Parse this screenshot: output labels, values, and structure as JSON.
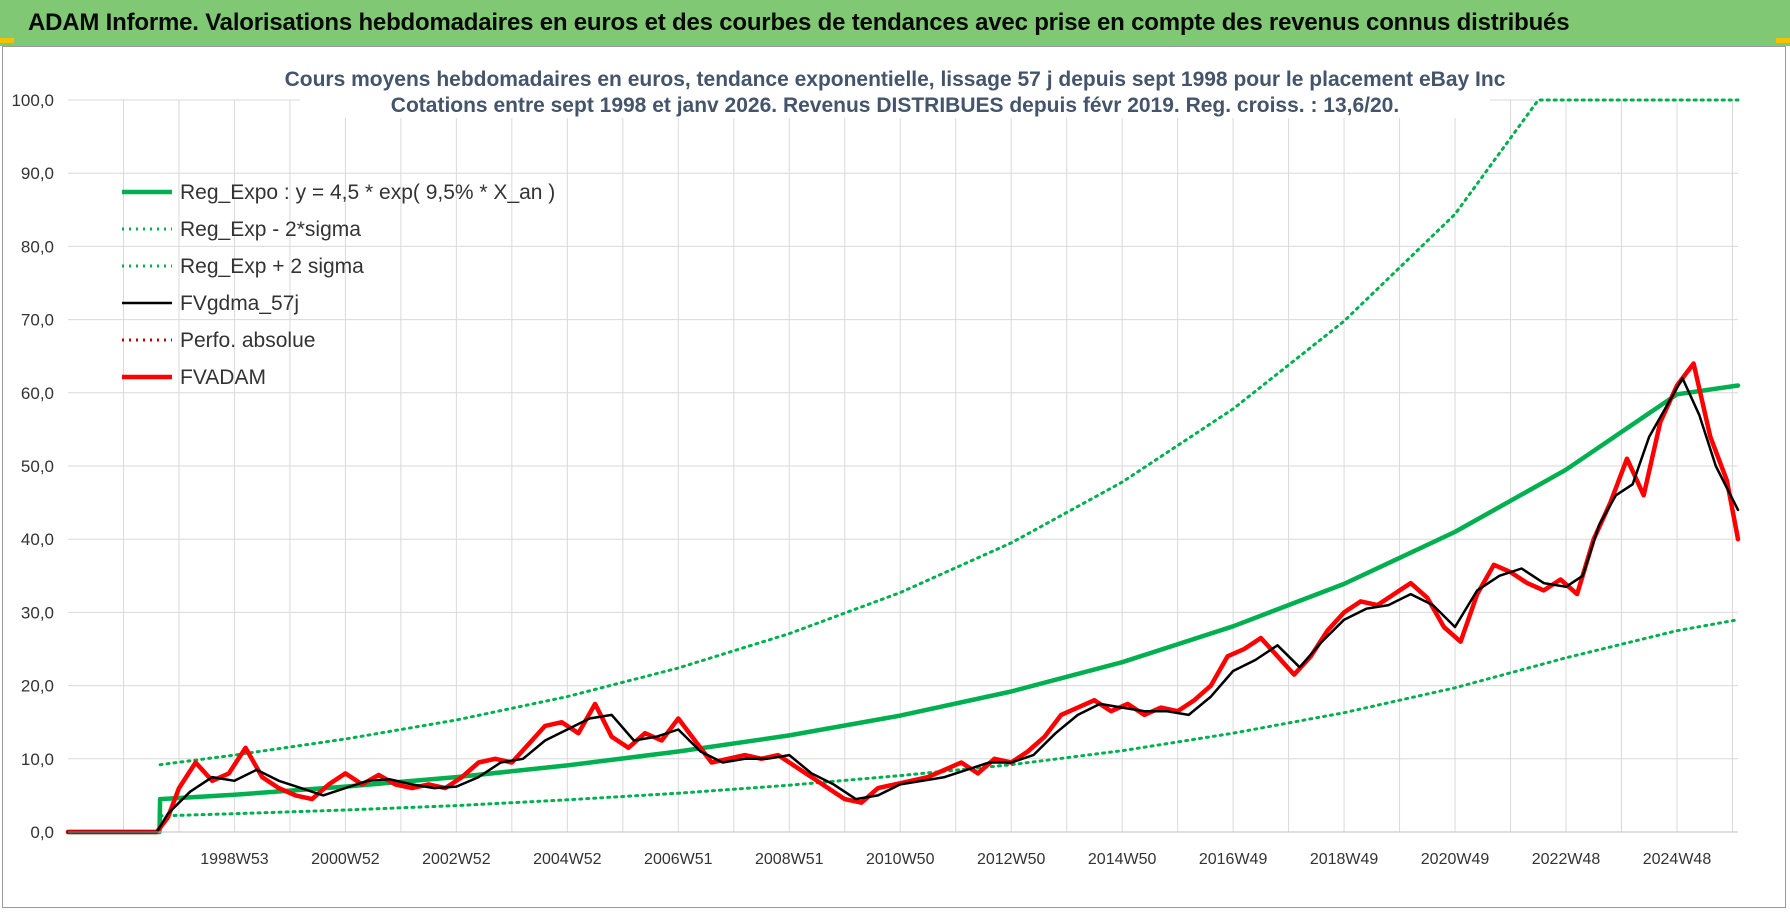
{
  "banner": {
    "title": "ADAM Informe. Valorisations hebdomadaires en euros et des courbes de tendances avec prise en compte des revenus connus distribués"
  },
  "colors": {
    "banner_bg": "#80c873",
    "reg_expo": "#00b050",
    "fvgdma": "#000000",
    "fvadam": "#ff0000",
    "perfo": "#c00000",
    "grid": "#d9d9d9"
  },
  "chart_data": {
    "type": "line",
    "title_lines": [
      "Cours moyens hebdomadaires en euros, tendance exponentielle, lissage 57 j depuis sept 1998 pour le placement eBay Inc",
      "Cotations entre sept 1998 et janv 2026. Revenus DISTRIBUES depuis févr 2019. Reg. croiss. : 13,6/20."
    ],
    "ylim": [
      0,
      100
    ],
    "y_ticks": [
      "0,0",
      "10,0",
      "20,0",
      "30,0",
      "40,0",
      "50,0",
      "60,0",
      "70,0",
      "80,0",
      "90,0",
      "100,0"
    ],
    "x_range": [
      1996.0,
      2026.1
    ],
    "x_tick_labels": [
      {
        "x": 1999.0,
        "label": "1998W53"
      },
      {
        "x": 2001.0,
        "label": "2000W52"
      },
      {
        "x": 2003.0,
        "label": "2002W52"
      },
      {
        "x": 2005.0,
        "label": "2004W52"
      },
      {
        "x": 2007.0,
        "label": "2006W51"
      },
      {
        "x": 2009.0,
        "label": "2008W51"
      },
      {
        "x": 2011.0,
        "label": "2010W50"
      },
      {
        "x": 2013.0,
        "label": "2012W50"
      },
      {
        "x": 2015.0,
        "label": "2014W50"
      },
      {
        "x": 2017.0,
        "label": "2016W49"
      },
      {
        "x": 2019.0,
        "label": "2018W49"
      },
      {
        "x": 2021.0,
        "label": "2020W49"
      },
      {
        "x": 2023.0,
        "label": "2022W48"
      },
      {
        "x": 2025.0,
        "label": "2024W48"
      }
    ],
    "grid": true,
    "legend_position": "top-left",
    "series": [
      {
        "name": "Reg_Expo : y = 4,5 * exp( 9,5% *  X_an )",
        "style": "solid-thick",
        "color": "#00b050",
        "points": [
          [
            1996.0,
            0
          ],
          [
            1997.65,
            0
          ],
          [
            1997.66,
            4.5
          ],
          [
            1999,
            5.1
          ],
          [
            2001,
            6.2
          ],
          [
            2003,
            7.5
          ],
          [
            2005,
            9.1
          ],
          [
            2007,
            11.0
          ],
          [
            2009,
            13.2
          ],
          [
            2011,
            15.9
          ],
          [
            2013,
            19.2
          ],
          [
            2015,
            23.2
          ],
          [
            2017,
            28.1
          ],
          [
            2019,
            33.9
          ],
          [
            2021,
            41.0
          ],
          [
            2023,
            49.5
          ],
          [
            2025,
            59.8
          ],
          [
            2026.1,
            61
          ]
        ]
      },
      {
        "name": "Reg_Exp - 2*sigma",
        "style": "dotted",
        "color": "#00b050",
        "points": [
          [
            1997.66,
            2.2
          ],
          [
            1999,
            2.5
          ],
          [
            2001,
            3.0
          ],
          [
            2003,
            3.6
          ],
          [
            2005,
            4.4
          ],
          [
            2007,
            5.3
          ],
          [
            2009,
            6.4
          ],
          [
            2011,
            7.7
          ],
          [
            2013,
            9.2
          ],
          [
            2015,
            11.1
          ],
          [
            2017,
            13.5
          ],
          [
            2019,
            16.3
          ],
          [
            2021,
            19.7
          ],
          [
            2023,
            23.8
          ],
          [
            2025,
            27.5
          ],
          [
            2026.1,
            29.0
          ]
        ]
      },
      {
        "name": "Reg_Exp + 2 sigma",
        "style": "dotted",
        "color": "#00b050",
        "points": [
          [
            1997.66,
            9.2
          ],
          [
            1999,
            10.5
          ],
          [
            2001,
            12.7
          ],
          [
            2003,
            15.3
          ],
          [
            2005,
            18.5
          ],
          [
            2007,
            22.4
          ],
          [
            2009,
            27.1
          ],
          [
            2011,
            32.7
          ],
          [
            2013,
            39.5
          ],
          [
            2015,
            47.8
          ],
          [
            2017,
            57.8
          ],
          [
            2019,
            69.8
          ],
          [
            2021,
            84.4
          ],
          [
            2022.5,
            100
          ],
          [
            2026.1,
            100
          ]
        ]
      },
      {
        "name": "FVgdma_57j",
        "style": "solid",
        "color": "#000000",
        "points": [
          [
            1996.0,
            0
          ],
          [
            1997.6,
            0
          ],
          [
            1997.8,
            2.5
          ],
          [
            1998.2,
            5.5
          ],
          [
            1998.6,
            7.5
          ],
          [
            1999.0,
            7.0
          ],
          [
            1999.4,
            8.5
          ],
          [
            1999.8,
            7.0
          ],
          [
            2000.2,
            6.0
          ],
          [
            2000.6,
            5.0
          ],
          [
            2001.0,
            6.0
          ],
          [
            2001.4,
            7.0
          ],
          [
            2001.8,
            7.2
          ],
          [
            2002.2,
            6.5
          ],
          [
            2002.6,
            6.0
          ],
          [
            2003.0,
            6.2
          ],
          [
            2003.4,
            7.5
          ],
          [
            2003.8,
            9.5
          ],
          [
            2004.2,
            10.0
          ],
          [
            2004.6,
            12.5
          ],
          [
            2005.0,
            14.0
          ],
          [
            2005.4,
            15.5
          ],
          [
            2005.8,
            16.0
          ],
          [
            2006.2,
            12.5
          ],
          [
            2006.6,
            13.0
          ],
          [
            2007.0,
            14.0
          ],
          [
            2007.4,
            11.0
          ],
          [
            2007.8,
            9.5
          ],
          [
            2008.2,
            10.0
          ],
          [
            2008.6,
            10.0
          ],
          [
            2009.0,
            10.5
          ],
          [
            2009.4,
            8.0
          ],
          [
            2009.8,
            6.5
          ],
          [
            2010.2,
            4.5
          ],
          [
            2010.6,
            5.0
          ],
          [
            2011.0,
            6.5
          ],
          [
            2011.4,
            7.0
          ],
          [
            2011.8,
            7.5
          ],
          [
            2012.2,
            8.5
          ],
          [
            2012.6,
            9.5
          ],
          [
            2013.0,
            9.5
          ],
          [
            2013.4,
            10.5
          ],
          [
            2013.8,
            13.5
          ],
          [
            2014.2,
            16.0
          ],
          [
            2014.6,
            17.5
          ],
          [
            2015.0,
            17.0
          ],
          [
            2015.4,
            16.5
          ],
          [
            2015.8,
            16.5
          ],
          [
            2016.2,
            16.0
          ],
          [
            2016.6,
            18.5
          ],
          [
            2017.0,
            22.0
          ],
          [
            2017.4,
            23.5
          ],
          [
            2017.8,
            25.5
          ],
          [
            2018.2,
            22.5
          ],
          [
            2018.6,
            26.0
          ],
          [
            2019.0,
            29.0
          ],
          [
            2019.4,
            30.5
          ],
          [
            2019.8,
            31.0
          ],
          [
            2020.2,
            32.5
          ],
          [
            2020.6,
            31.0
          ],
          [
            2021.0,
            28.0
          ],
          [
            2021.4,
            33.0
          ],
          [
            2021.8,
            35.0
          ],
          [
            2022.2,
            36.0
          ],
          [
            2022.6,
            34.0
          ],
          [
            2023.0,
            33.5
          ],
          [
            2023.3,
            35.0
          ],
          [
            2023.6,
            42.0
          ],
          [
            2023.9,
            46.0
          ],
          [
            2024.2,
            47.5
          ],
          [
            2024.5,
            54.0
          ],
          [
            2024.8,
            58.0
          ],
          [
            2025.1,
            62.0
          ],
          [
            2025.4,
            57.0
          ],
          [
            2025.7,
            50.0
          ],
          [
            2026.1,
            44.0
          ]
        ]
      },
      {
        "name": "Perfo. absolue",
        "style": "dotted",
        "color": "#c00000",
        "points": []
      },
      {
        "name": "FVADAM",
        "style": "solid-thick",
        "color": "#ff0000",
        "points": [
          [
            1996.0,
            0
          ],
          [
            1997.6,
            0
          ],
          [
            1997.8,
            2.0
          ],
          [
            1998.0,
            6.0
          ],
          [
            1998.3,
            9.5
          ],
          [
            1998.6,
            7.0
          ],
          [
            1998.9,
            8.0
          ],
          [
            1999.2,
            11.5
          ],
          [
            1999.5,
            7.5
          ],
          [
            1999.8,
            6.0
          ],
          [
            2000.1,
            5.0
          ],
          [
            2000.4,
            4.5
          ],
          [
            2000.7,
            6.5
          ],
          [
            2001.0,
            8.0
          ],
          [
            2001.3,
            6.5
          ],
          [
            2001.6,
            7.8
          ],
          [
            2001.9,
            6.5
          ],
          [
            2002.2,
            6.0
          ],
          [
            2002.5,
            6.5
          ],
          [
            2002.8,
            6.0
          ],
          [
            2003.1,
            7.5
          ],
          [
            2003.4,
            9.5
          ],
          [
            2003.7,
            10.0
          ],
          [
            2004.0,
            9.5
          ],
          [
            2004.3,
            12.0
          ],
          [
            2004.6,
            14.5
          ],
          [
            2004.9,
            15.0
          ],
          [
            2005.2,
            13.5
          ],
          [
            2005.5,
            17.5
          ],
          [
            2005.8,
            13.0
          ],
          [
            2006.1,
            11.5
          ],
          [
            2006.4,
            13.5
          ],
          [
            2006.7,
            12.5
          ],
          [
            2007.0,
            15.5
          ],
          [
            2007.3,
            12.5
          ],
          [
            2007.6,
            9.5
          ],
          [
            2007.9,
            10.0
          ],
          [
            2008.2,
            10.5
          ],
          [
            2008.5,
            10.0
          ],
          [
            2008.8,
            10.5
          ],
          [
            2009.1,
            9.0
          ],
          [
            2009.4,
            7.5
          ],
          [
            2009.7,
            6.0
          ],
          [
            2010.0,
            4.5
          ],
          [
            2010.3,
            4.0
          ],
          [
            2010.6,
            6.0
          ],
          [
            2010.9,
            6.5
          ],
          [
            2011.2,
            7.0
          ],
          [
            2011.5,
            7.5
          ],
          [
            2011.8,
            8.5
          ],
          [
            2012.1,
            9.5
          ],
          [
            2012.4,
            8.0
          ],
          [
            2012.7,
            10.0
          ],
          [
            2013.0,
            9.5
          ],
          [
            2013.3,
            11.0
          ],
          [
            2013.6,
            13.0
          ],
          [
            2013.9,
            16.0
          ],
          [
            2014.2,
            17.0
          ],
          [
            2014.5,
            18.0
          ],
          [
            2014.8,
            16.5
          ],
          [
            2015.1,
            17.5
          ],
          [
            2015.4,
            16.0
          ],
          [
            2015.7,
            17.0
          ],
          [
            2016.0,
            16.5
          ],
          [
            2016.3,
            18.0
          ],
          [
            2016.6,
            20.0
          ],
          [
            2016.9,
            24.0
          ],
          [
            2017.2,
            25.0
          ],
          [
            2017.5,
            26.5
          ],
          [
            2017.8,
            24.0
          ],
          [
            2018.1,
            21.5
          ],
          [
            2018.4,
            24.0
          ],
          [
            2018.7,
            27.5
          ],
          [
            2019.0,
            30.0
          ],
          [
            2019.3,
            31.5
          ],
          [
            2019.6,
            31.0
          ],
          [
            2019.9,
            32.5
          ],
          [
            2020.2,
            34.0
          ],
          [
            2020.5,
            32.0
          ],
          [
            2020.8,
            28.0
          ],
          [
            2021.1,
            26.0
          ],
          [
            2021.4,
            32.5
          ],
          [
            2021.7,
            36.5
          ],
          [
            2022.0,
            35.5
          ],
          [
            2022.3,
            34.0
          ],
          [
            2022.6,
            33.0
          ],
          [
            2022.9,
            34.5
          ],
          [
            2023.2,
            32.5
          ],
          [
            2023.5,
            40.0
          ],
          [
            2023.8,
            45.0
          ],
          [
            2024.1,
            51.0
          ],
          [
            2024.4,
            46.0
          ],
          [
            2024.7,
            56.0
          ],
          [
            2025.0,
            61.0
          ],
          [
            2025.3,
            64.0
          ],
          [
            2025.6,
            54.0
          ],
          [
            2025.9,
            48.0
          ],
          [
            2026.1,
            40.0
          ]
        ]
      }
    ]
  }
}
